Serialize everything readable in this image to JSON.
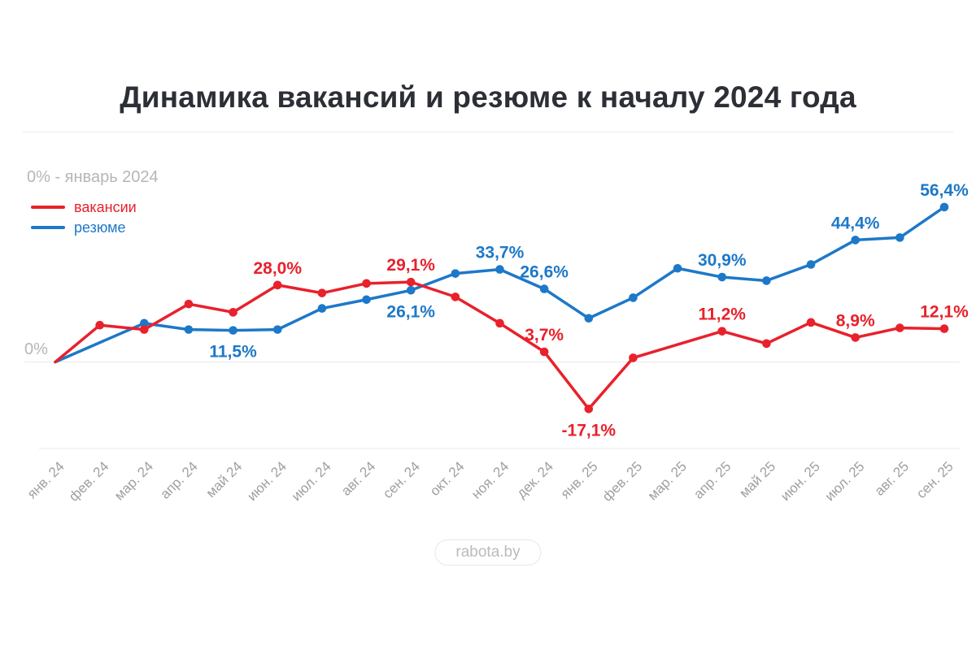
{
  "title": "Динамика вакансий и резюме к началу 2024 года",
  "subtitle": "0% - январь 2024",
  "y_axis": {
    "zero_label": "0%"
  },
  "badge": {
    "label": "rabota.by"
  },
  "legend": {
    "items": [
      {
        "label": "вакансии",
        "color": "#e8212b"
      },
      {
        "label": "резюме",
        "color": "#1d78c8"
      }
    ]
  },
  "chart_data": {
    "type": "line",
    "title": "Динамика вакансий и резюме к началу 2024 года",
    "baseline_note": "0% - январь 2024",
    "y_unit": "%",
    "ylim": [
      -22,
      62
    ],
    "grid": "zero-line-only",
    "legend_position": "top-left",
    "x": [
      "янв. 24",
      "фев. 24",
      "мар. 24",
      "апр. 24",
      "май 24",
      "июн. 24",
      "июл. 24",
      "авг. 24",
      "сен. 24",
      "окт. 24",
      "ноя. 24",
      "дек. 24",
      "янв. 25",
      "фев. 25",
      "мар. 25",
      "апр. 25",
      "май 25",
      "июн. 25",
      "июл. 25",
      "авг. 25",
      "сен. 25"
    ],
    "series": [
      {
        "name": "вакансии",
        "color": "#e8212b",
        "values": [
          0,
          13.4,
          11.8,
          21.1,
          18.1,
          28.0,
          25.1,
          28.6,
          29.1,
          23.7,
          14.1,
          3.7,
          -17.1,
          1.5,
          null,
          11.2,
          6.7,
          14.4,
          8.9,
          12.4,
          12.1
        ],
        "point_labels": [
          {
            "index": 5,
            "text": "28,0%",
            "position": "above"
          },
          {
            "index": 8,
            "text": "29,1%",
            "position": "above"
          },
          {
            "index": 11,
            "text": "3,7%",
            "position": "above"
          },
          {
            "index": 12,
            "text": "-17,1%",
            "position": "below"
          },
          {
            "index": 15,
            "text": "11,2%",
            "position": "above"
          },
          {
            "index": 18,
            "text": "8,9%",
            "position": "above"
          },
          {
            "index": 20,
            "text": "12,1%",
            "position": "above"
          }
        ]
      },
      {
        "name": "резюме",
        "color": "#1d78c8",
        "values": [
          0,
          null,
          14.1,
          11.8,
          11.5,
          11.8,
          19.5,
          22.7,
          26.1,
          32.2,
          33.7,
          26.6,
          15.9,
          23.4,
          34.1,
          30.9,
          29.6,
          35.5,
          44.4,
          45.3,
          56.4
        ],
        "point_labels": [
          {
            "index": 4,
            "text": "11,5%",
            "position": "below"
          },
          {
            "index": 8,
            "text": "26,1%",
            "position": "below"
          },
          {
            "index": 10,
            "text": "33,7%",
            "position": "above"
          },
          {
            "index": 11,
            "text": "26,6%",
            "position": "above"
          },
          {
            "index": 15,
            "text": "30,9%",
            "position": "above"
          },
          {
            "index": 18,
            "text": "44,4%",
            "position": "above"
          },
          {
            "index": 20,
            "text": "56,4%",
            "position": "above"
          }
        ]
      }
    ]
  }
}
